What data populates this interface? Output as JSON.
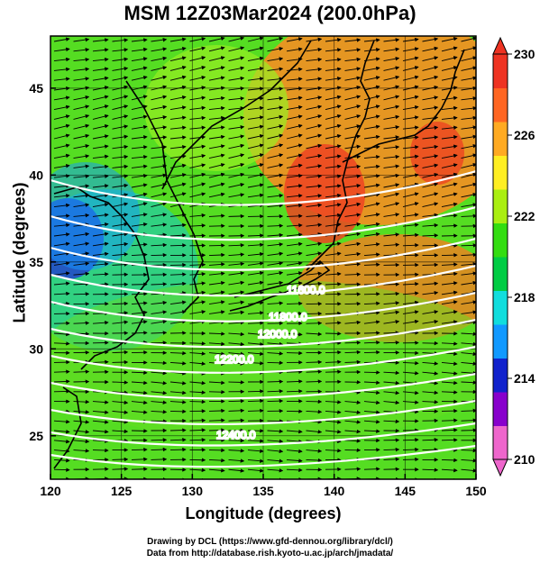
{
  "title": "MSM 12Z03Mar2024 (200.0hPa)",
  "x_axis_label": "Longitude (degrees)",
  "y_axis_label": "Latitude (degrees)",
  "x_ticks": [
    "120",
    "125",
    "130",
    "135",
    "140",
    "145",
    "150"
  ],
  "y_ticks": [
    "25",
    "30",
    "35",
    "40",
    "45"
  ],
  "colorbar": {
    "ticks": [
      "210",
      "214",
      "218",
      "222",
      "226",
      "230"
    ],
    "colors": [
      "#ee66cc",
      "#8800cc",
      "#1122cc",
      "#1199ff",
      "#11dddd",
      "#00cc44",
      "#33dd11",
      "#aaee11",
      "#ffee22",
      "#ffaa22",
      "#ff6622",
      "#ee3322"
    ]
  },
  "contour_labels": [
    "11600.0",
    "11800.0",
    "12000.0",
    "12200.0",
    "12400.0"
  ],
  "credits": {
    "line1": "Drawing by DCL (https://www.gfd-dennou.org/library/dcl/)",
    "line2": "Data from http://database.rish.kyoto-u.ac.jp/arch/jmadata/"
  }
}
